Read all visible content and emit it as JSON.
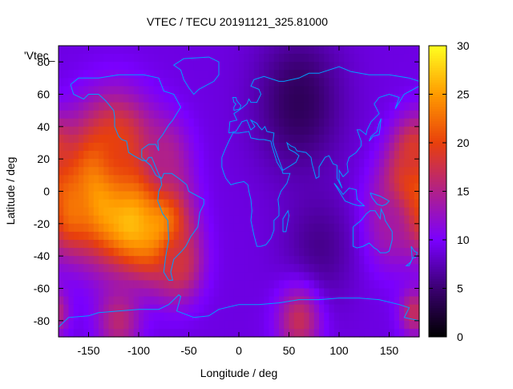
{
  "title": "VTEC / TECU 20191121_325.81000",
  "chart_data": {
    "type": "heatmap",
    "title": "VTEC / TECU 20191121_325.81000",
    "xlabel": "Longitude / deg",
    "ylabel": "Latitude / deg",
    "xlim": [
      -180,
      180
    ],
    "ylim": [
      -90,
      90
    ],
    "x_ticks": [
      "-150",
      "-100",
      "-50",
      "0",
      "50",
      "100",
      "150"
    ],
    "x_tick_values": [
      -150,
      -100,
      -50,
      0,
      50,
      100,
      150
    ],
    "y_ticks": [
      "-80",
      "-60",
      "-40",
      "-20",
      "0",
      "20",
      "40",
      "60",
      "80"
    ],
    "y_tick_values": [
      -80,
      -60,
      -40,
      -20,
      0,
      20,
      40,
      60,
      80
    ],
    "colorbar": {
      "range": [
        0,
        30
      ],
      "ticks": [
        "0",
        "5",
        "10",
        "15",
        "20",
        "25",
        "30"
      ],
      "tick_values": [
        0,
        5,
        10,
        15,
        20,
        25,
        30
      ],
      "colors": [
        "#000000",
        "#3a0070",
        "#7a00ff",
        "#b0208a",
        "#e8400c",
        "#ff9a00",
        "#ffff20"
      ]
    },
    "legend_key": "'Vtec_",
    "coastline_color": "#00a0ff",
    "grid": false,
    "features": [
      {
        "lon": -135,
        "lat": 2,
        "vtec": 28,
        "spread": 28
      },
      {
        "lon": -105,
        "lat": -12,
        "vtec": 29,
        "spread": 22
      },
      {
        "lon": -80,
        "lat": -22,
        "vtec": 27,
        "spread": 20
      },
      {
        "lon": -170,
        "lat": -10,
        "vtec": 24,
        "spread": 16
      },
      {
        "lon": -120,
        "lat": 25,
        "vtec": 20,
        "spread": 22
      },
      {
        "lon": -75,
        "lat": 20,
        "vtec": 15,
        "spread": 18
      },
      {
        "lon": -60,
        "lat": -45,
        "vtec": 18,
        "spread": 16
      },
      {
        "lon": 170,
        "lat": 0,
        "vtec": 24,
        "spread": 18
      },
      {
        "lon": 175,
        "lat": 25,
        "vtec": 19,
        "spread": 14
      },
      {
        "lon": 150,
        "lat": -20,
        "vtec": 14,
        "spread": 20
      },
      {
        "lon": 60,
        "lat": 55,
        "vtec": 4,
        "spread": 30
      },
      {
        "lon": 80,
        "lat": -35,
        "vtec": 6,
        "spread": 25
      },
      {
        "lon": 60,
        "lat": -80,
        "vtec": 17,
        "spread": 15
      },
      {
        "lon": -120,
        "lat": -80,
        "vtec": 16,
        "spread": 15
      },
      {
        "lon": 175,
        "lat": -75,
        "vtec": 17,
        "spread": 10
      }
    ],
    "background_vtec": 9
  }
}
